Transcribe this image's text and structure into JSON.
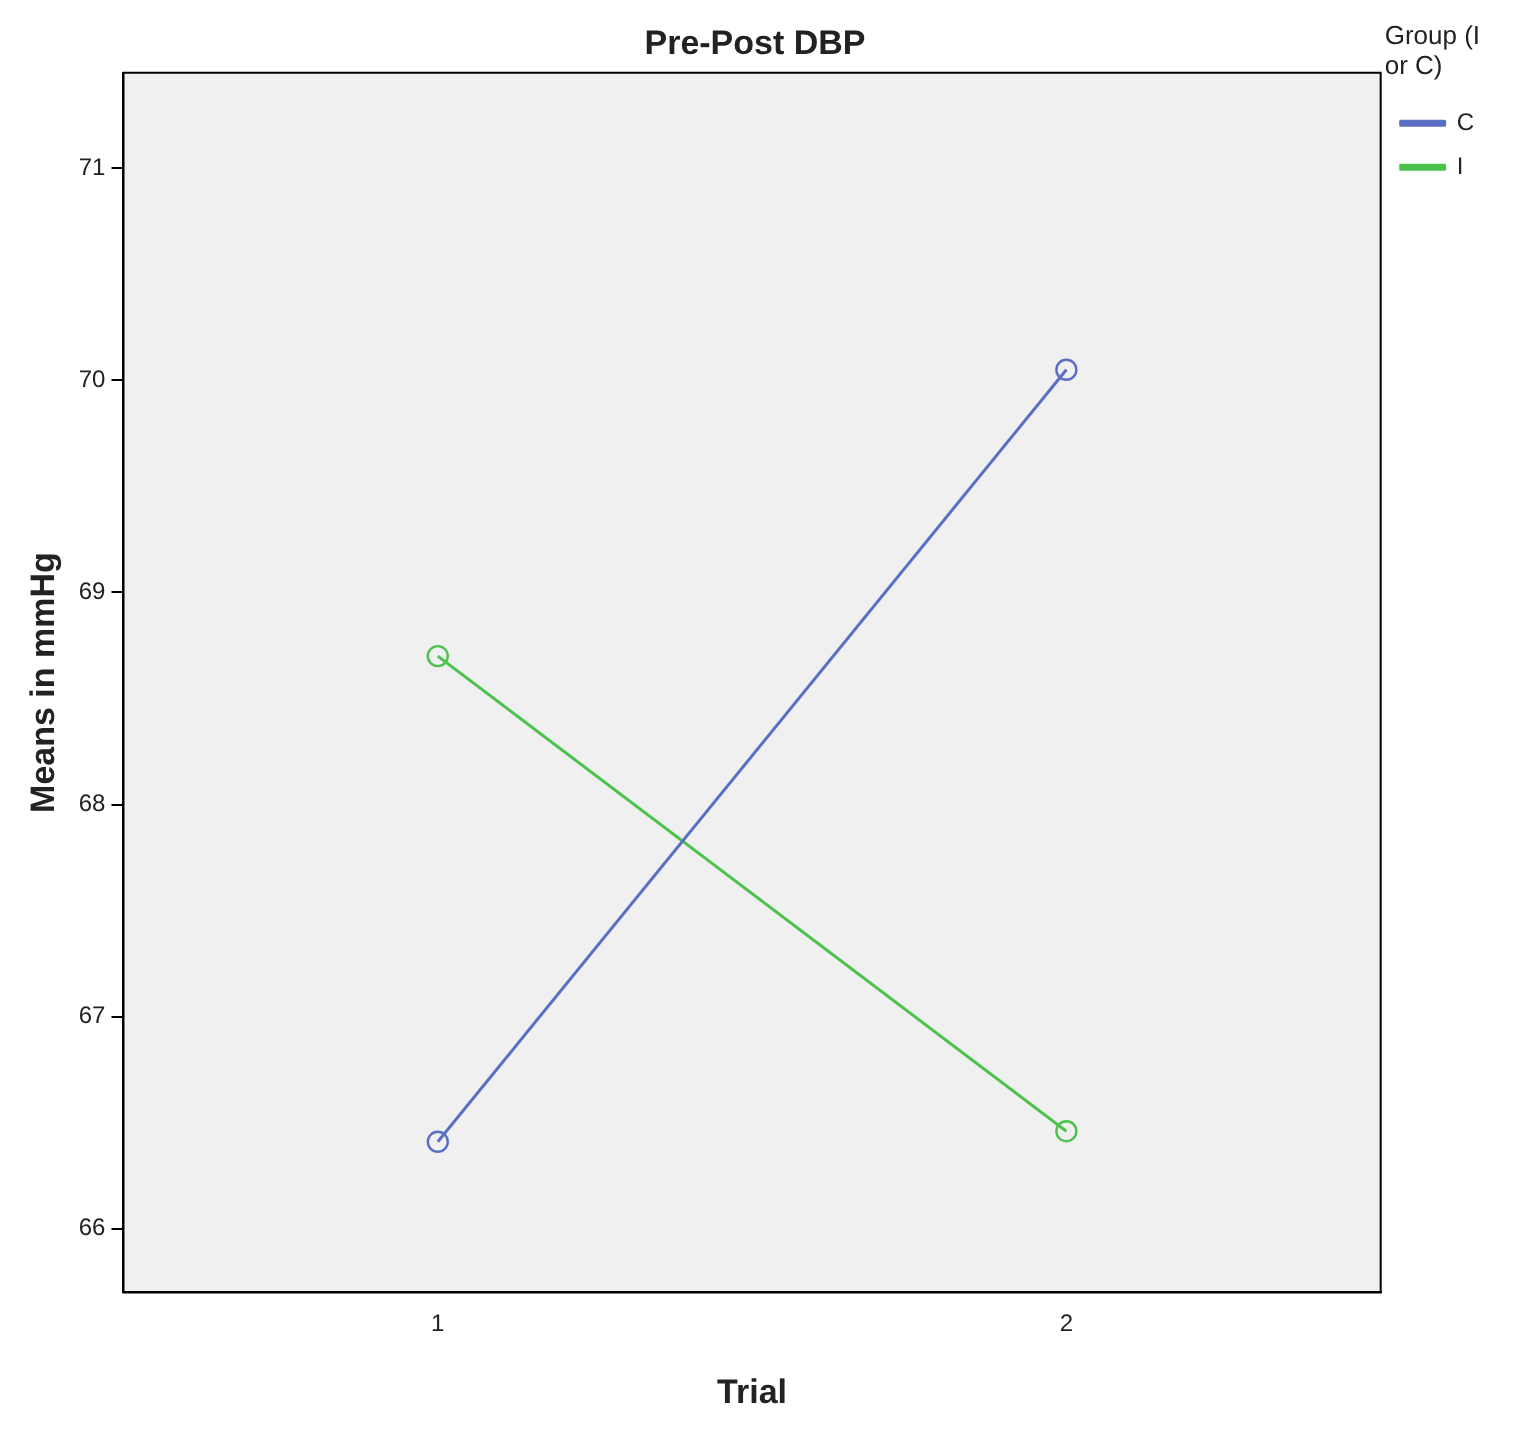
{
  "chart_data": {
    "type": "line",
    "title": "Pre-Post DBP",
    "xlabel": "Trial",
    "ylabel": "Means in mmHg",
    "legend_title": "Group (I or C)",
    "categories": [
      "1",
      "2"
    ],
    "series": [
      {
        "name": "C",
        "color": "#5a6fc4",
        "values": [
          66.41,
          70.05
        ]
      },
      {
        "name": "I",
        "color": "#4cc24c",
        "values": [
          68.7,
          66.46
        ]
      }
    ],
    "ylim": [
      65.7,
      71.45
    ],
    "yticks": [
      66,
      67,
      68,
      69,
      70,
      71
    ],
    "grid": false,
    "legend": "top right",
    "marker": "circle",
    "line_style": "solid"
  }
}
